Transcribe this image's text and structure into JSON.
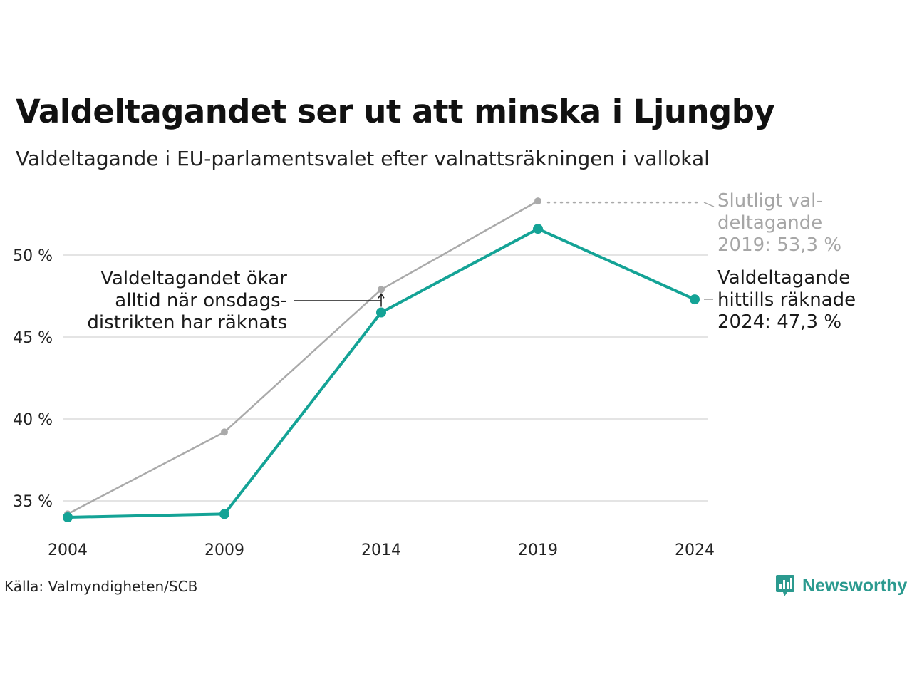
{
  "chart_data": {
    "type": "line",
    "title": "Valdeltagandet ser ut att minska i Ljungby",
    "subtitle": "Valdeltagande i EU-parlamentsvalet efter valnattsräkningen i vallokal",
    "x": [
      2004,
      2009,
      2014,
      2019,
      2024
    ],
    "x_tick_labels": [
      "2004",
      "2009",
      "2014",
      "2019",
      "2024"
    ],
    "y_ticks": [
      35,
      40,
      45,
      50
    ],
    "y_tick_labels": [
      "35 %",
      "40 %",
      "45 %",
      "50 %"
    ],
    "ylim": [
      32.5,
      54.5
    ],
    "grid": true,
    "series": [
      {
        "values": [
          34.2,
          39.2,
          47.9,
          53.3,
          null
        ],
        "color": "#aaaaaa"
      },
      {
        "values": [
          34.0,
          34.2,
          46.5,
          51.6,
          47.3
        ],
        "color": "#14a396"
      }
    ],
    "annotations": {
      "final_2019": [
        "Slutligt val-",
        "deltagande",
        "2019: 53,3 %"
      ],
      "current_2024": [
        "Valdeltagande",
        "hittills räknade",
        "2024: 47,3 %"
      ],
      "wednesday_note": [
        "Valdeltagandet ökar",
        "alltid när onsdags-",
        "distrikten har räknats"
      ]
    },
    "source": "Källa: Valmyndigheten/SCB"
  },
  "brand": {
    "name": "Newsworthy",
    "color": "#2b9a8f"
  }
}
